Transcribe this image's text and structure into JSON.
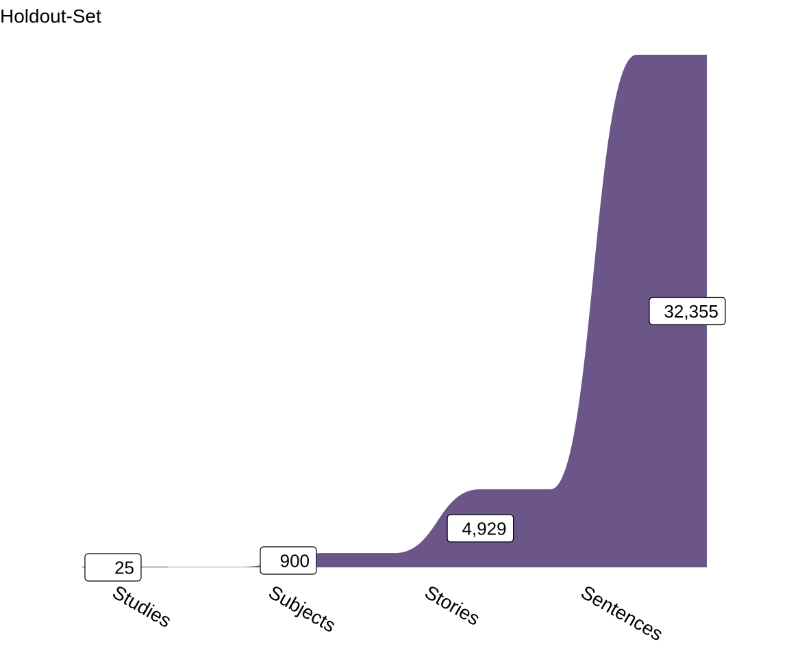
{
  "chart_data": {
    "type": "area",
    "title": "Holdout-Set",
    "categories": [
      "Studies",
      "Subjects",
      "Stories",
      "Sentences"
    ],
    "values": [
      25,
      900,
      4929,
      32355
    ],
    "data_labels": [
      "25",
      "900",
      "4,929",
      "32,355"
    ],
    "xlabel": "",
    "ylabel": "",
    "ylim": [
      0,
      32355
    ],
    "grid": false,
    "legend": "none",
    "fill_color": "#6b5589",
    "label_box_fill": "#ffffff",
    "label_box_stroke": "#000000"
  }
}
